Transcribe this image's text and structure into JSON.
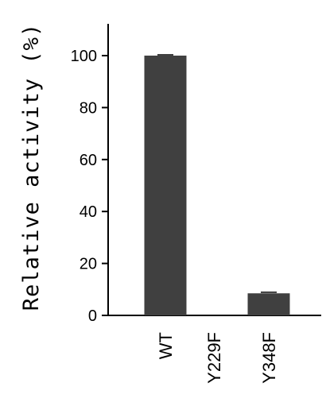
{
  "chart_data": {
    "type": "bar",
    "categories": [
      "WT",
      "Y229F",
      "Y348F"
    ],
    "values": [
      100,
      0,
      8.5
    ],
    "errors": [
      0.3,
      0,
      0.4
    ],
    "ylabel": "Relative activity (%)",
    "xlabel": "",
    "title": "",
    "ylim": [
      0,
      110
    ],
    "yticks": [
      "0",
      "20",
      "40",
      "60",
      "80",
      "100"
    ],
    "grid": false,
    "bar_color": "#404040",
    "axis_color": "#000000"
  }
}
